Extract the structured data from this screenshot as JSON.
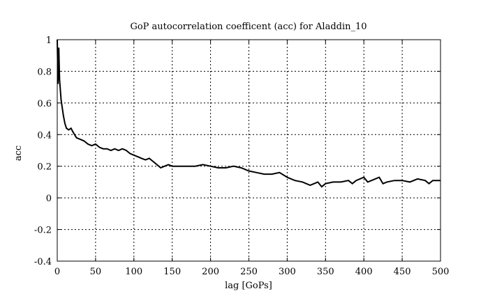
{
  "chart_data": {
    "type": "line",
    "title": "GoP autocorrelation coefficent (acc) for Aladdin_10",
    "xlabel": "lag [GoPs]",
    "ylabel": "acc",
    "xlim": [
      0,
      500
    ],
    "ylim": [
      -0.4,
      1
    ],
    "grid": true,
    "xticks": [
      0,
      50,
      100,
      150,
      200,
      250,
      300,
      350,
      400,
      450,
      500
    ],
    "yticks": [
      -0.4,
      -0.2,
      0,
      0.2,
      0.4,
      0.6,
      0.8,
      1
    ],
    "ytick_labels": [
      "-0.4",
      "-0.2",
      "0",
      "0.2",
      "0.4",
      "0.6",
      "0.8",
      "1"
    ],
    "series": [
      {
        "name": "acc",
        "color": "#000000",
        "x": [
          0,
          1,
          2,
          3,
          5,
          8,
          10,
          12,
          15,
          18,
          20,
          25,
          30,
          35,
          40,
          45,
          50,
          55,
          60,
          65,
          70,
          75,
          80,
          85,
          90,
          95,
          100,
          105,
          110,
          115,
          120,
          125,
          130,
          135,
          140,
          145,
          150,
          160,
          170,
          180,
          190,
          200,
          210,
          220,
          230,
          240,
          250,
          260,
          270,
          280,
          290,
          300,
          310,
          320,
          330,
          340,
          345,
          350,
          360,
          370,
          380,
          385,
          390,
          400,
          405,
          410,
          420,
          425,
          430,
          440,
          450,
          460,
          470,
          480,
          485,
          490,
          500
        ],
        "y": [
          1.0,
          0.72,
          0.95,
          0.75,
          0.62,
          0.52,
          0.47,
          0.44,
          0.43,
          0.44,
          0.42,
          0.38,
          0.37,
          0.36,
          0.34,
          0.33,
          0.34,
          0.32,
          0.31,
          0.31,
          0.3,
          0.31,
          0.3,
          0.31,
          0.3,
          0.28,
          0.27,
          0.26,
          0.25,
          0.24,
          0.25,
          0.23,
          0.21,
          0.19,
          0.2,
          0.21,
          0.2,
          0.2,
          0.2,
          0.2,
          0.21,
          0.2,
          0.19,
          0.19,
          0.2,
          0.19,
          0.17,
          0.16,
          0.15,
          0.15,
          0.16,
          0.13,
          0.11,
          0.1,
          0.08,
          0.1,
          0.07,
          0.09,
          0.1,
          0.1,
          0.11,
          0.09,
          0.11,
          0.13,
          0.1,
          0.11,
          0.13,
          0.09,
          0.1,
          0.11,
          0.11,
          0.1,
          0.12,
          0.11,
          0.09,
          0.11,
          0.11
        ]
      }
    ]
  }
}
